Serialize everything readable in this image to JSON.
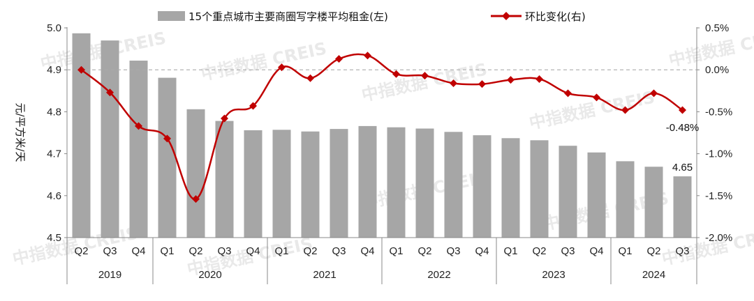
{
  "chart_data": {
    "type": "bar+line",
    "legend": {
      "bar_label": "15个重点城市主要商圈写字楼平均租金(左)",
      "line_label": "环比变化(右)",
      "placement": "top"
    },
    "ylabel_left": "元/平方米/天",
    "left_axis": {
      "ylim": [
        4.5,
        5.0
      ],
      "ticks": [
        "5.0",
        "4.9",
        "4.8",
        "4.7",
        "4.6",
        "4.5"
      ]
    },
    "right_axis": {
      "ylim": [
        -2.0,
        0.5
      ],
      "ticks": [
        "0.5%",
        "0.0%",
        "-0.5%",
        "-1.0%",
        "-1.5%",
        "-2.0%"
      ]
    },
    "quarters": [
      "Q2",
      "Q3",
      "Q4",
      "Q1",
      "Q2",
      "Q3",
      "Q4",
      "Q1",
      "Q2",
      "Q3",
      "Q4",
      "Q1",
      "Q2",
      "Q3",
      "Q4",
      "Q1",
      "Q2",
      "Q3",
      "Q4",
      "Q1",
      "Q2",
      "Q3"
    ],
    "years": [
      {
        "label": "2019",
        "count": 3
      },
      {
        "label": "2020",
        "count": 4
      },
      {
        "label": "2021",
        "count": 4
      },
      {
        "label": "2022",
        "count": 4
      },
      {
        "label": "2023",
        "count": 4
      },
      {
        "label": "2024",
        "count": 3
      }
    ],
    "series": [
      {
        "name": "15个重点城市主要商圈写字楼平均租金(左)",
        "type": "bar",
        "axis": "left",
        "color": "#a6a6a6",
        "values": [
          4.987,
          4.97,
          4.922,
          4.881,
          4.806,
          4.778,
          4.756,
          4.757,
          4.753,
          4.759,
          4.766,
          4.763,
          4.76,
          4.752,
          4.744,
          4.737,
          4.732,
          4.719,
          4.703,
          4.682,
          4.669,
          4.646
        ]
      },
      {
        "name": "环比变化(右)",
        "type": "line",
        "axis": "right",
        "color": "#c00000",
        "values": [
          0.0,
          -0.27,
          -0.67,
          -0.82,
          -1.54,
          -0.58,
          -0.43,
          0.03,
          -0.1,
          0.13,
          0.17,
          -0.05,
          -0.07,
          -0.16,
          -0.17,
          -0.12,
          -0.11,
          -0.28,
          -0.33,
          -0.48,
          -0.28,
          -0.48
        ]
      }
    ],
    "annotations": [
      {
        "text": "-0.48%",
        "series": "环比变化(右)",
        "index": 21
      },
      {
        "text": "4.65",
        "series": "15个重点城市主要商圈写字楼平均租金(左)",
        "index": 21
      }
    ],
    "reference_line": {
      "axis": "right",
      "value": 0.0,
      "style": "dashed"
    },
    "watermark": "中指数据 CREIS"
  }
}
